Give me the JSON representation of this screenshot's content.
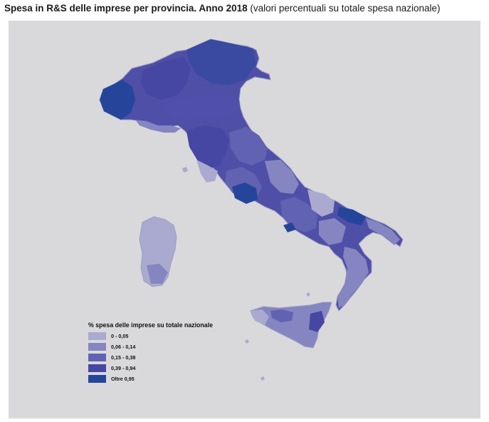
{
  "title": {
    "bold": "Spesa in R&S delle imprese per provincia. Anno 2018",
    "normal": "(valori percentuali su totale spesa nazionale)"
  },
  "legend": {
    "title": "% spesa delle imprese su totale nazionale",
    "classes": [
      {
        "label": "0 - 0,05",
        "color": "#aaaad0"
      },
      {
        "label": "0,06 - 0,14",
        "color": "#8585c1"
      },
      {
        "label": "0,15 - 0,38",
        "color": "#6262b3"
      },
      {
        "label": "0,39 - 0,94",
        "color": "#4646a3"
      },
      {
        "label": "Oltre 0,95",
        "color": "#24459a"
      }
    ]
  },
  "colors": {
    "background": "#d9d9db",
    "boundary": "#9d9dc4"
  }
}
